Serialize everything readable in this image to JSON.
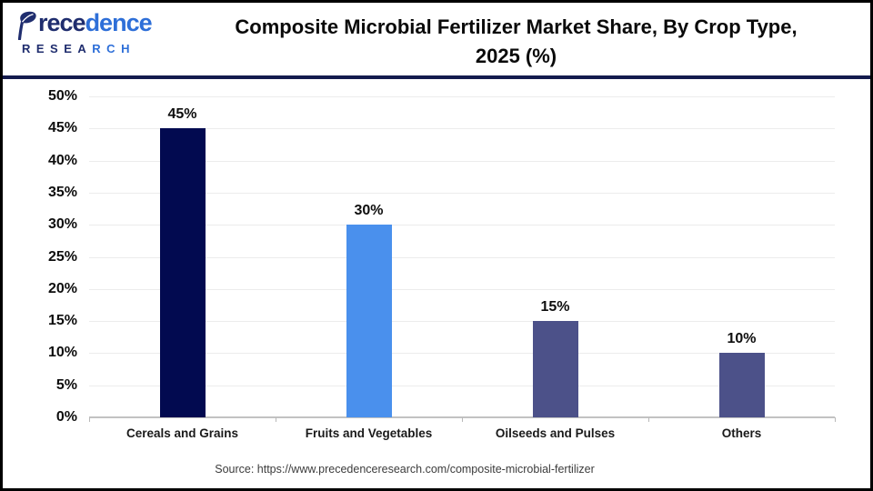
{
  "header": {
    "logo": {
      "icon": "leaf-p-icon",
      "brand_navy": "rece",
      "brand_blue": "dence",
      "research_navy": "RESEA",
      "research_blue": "RCH"
    },
    "title_lines": {
      "line1": "Composite Microbial Fertilizer Market Share, By Crop Type,",
      "line2": "2025 (%)"
    }
  },
  "chart_data": {
    "type": "bar",
    "title": "Composite Microbial Fertilizer Market Share, By Crop Type, 2025 (%)",
    "categories": [
      "Cereals and Grains",
      "Fruits and Vegetables",
      "Oilseeds and Pulses",
      "Others"
    ],
    "values": [
      45,
      30,
      15,
      10
    ],
    "data_labels": [
      "45%",
      "30%",
      "15%",
      "10%"
    ],
    "bar_colors": [
      "#020a50",
      "#4a90ed",
      "#4c5189",
      "#4c5189"
    ],
    "ylim": [
      0,
      50
    ],
    "ytick_step": 5,
    "y_tick_labels": [
      "0%",
      "5%",
      "10%",
      "15%",
      "20%",
      "25%",
      "30%",
      "35%",
      "40%",
      "45%",
      "50%"
    ],
    "grid": true,
    "legend": false,
    "xlabel": "",
    "ylabel": ""
  },
  "footer": {
    "source": "Source: https://www.precedenceresearch.com/composite-microbial-fertilizer"
  },
  "colors": {
    "grid": "#ececec",
    "baseline": "#c2c2c2",
    "separator": "#141b4d",
    "logo_navy": "#1f2d6e",
    "logo_blue": "#2e6fd8",
    "bar_navy": "#020a50",
    "bar_blue": "#4a90ed",
    "bar_slate": "#4c5189"
  }
}
